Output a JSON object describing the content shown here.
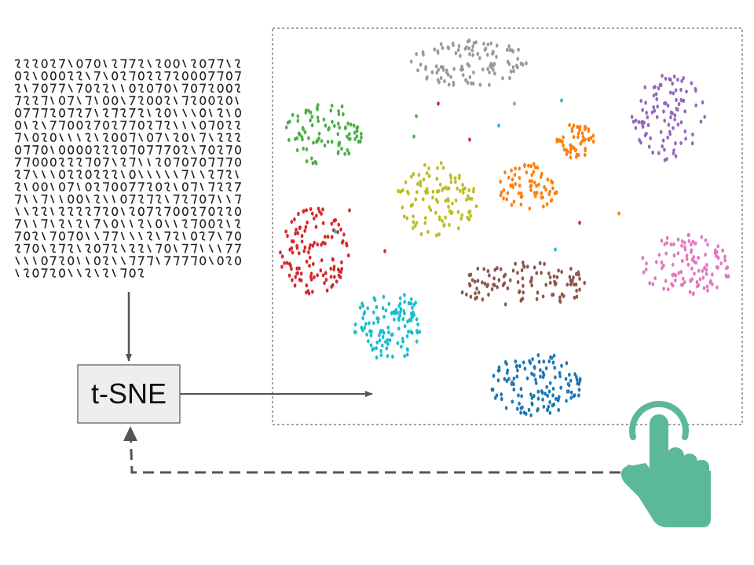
{
  "process_box": {
    "label": "t-SNE"
  },
  "input_image": {
    "kind": "grid of handwritten digits",
    "rows": 18
  },
  "embedding_plot": {
    "border_style": "dashed",
    "clusters": [
      {
        "color": "#999999",
        "count": 110
      },
      {
        "color": "#4fae4a",
        "count": 95
      },
      {
        "color": "#9467bd",
        "count": 100
      },
      {
        "color": "#bcbd22",
        "count": 110
      },
      {
        "color": "#ff7f0e",
        "count": 70
      },
      {
        "color": "#ff7f0e",
        "count": 55
      },
      {
        "color": "#d62728",
        "count": 120
      },
      {
        "color": "#8c564b",
        "count": 110
      },
      {
        "color": "#e377c2",
        "count": 110
      },
      {
        "color": "#17becf",
        "count": 115
      },
      {
        "color": "#1f77b4",
        "count": 130
      }
    ]
  },
  "interaction": {
    "icon": "tap-hand-icon",
    "color": "#5bb89a"
  },
  "colors": {
    "arrow": "#555555",
    "box_fill": "#eeeeee",
    "box_border": "#555555",
    "accent": "#5bb89a"
  }
}
